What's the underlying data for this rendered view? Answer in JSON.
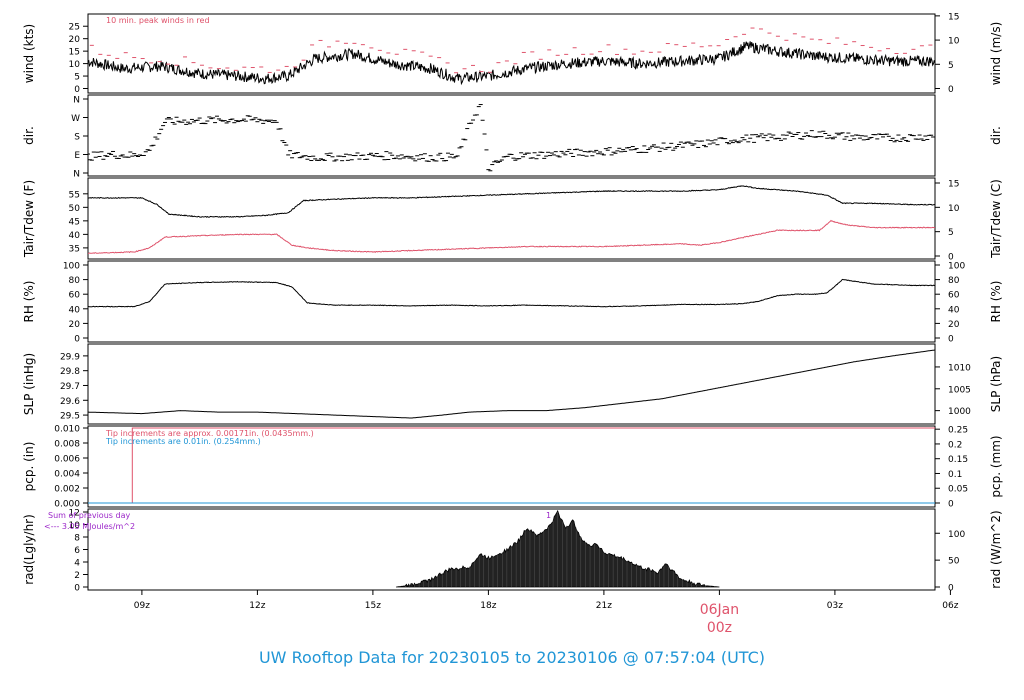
{
  "footer": {
    "title": "UW Rooftop Data for 20230105  to  20230106 @ 07:57:04  (UTC)"
  },
  "colors": {
    "red": "#df536b",
    "blue": "#2196d6",
    "purple": "#9c27c9",
    "black": "#000000"
  },
  "chart_data": [
    {
      "type": "line",
      "panel": "wind",
      "ylabel": "wind (kts)",
      "ylabel_right": "wind (m/s)",
      "annotation": "10 min. peak winds in red",
      "y_ticks": [
        0,
        5,
        10,
        15,
        20,
        25
      ],
      "y_ticks_right": [
        0,
        5,
        10,
        15
      ],
      "ylim": [
        -1,
        27.5
      ],
      "series": [
        {
          "color": "#000000",
          "x": [
            7.6,
            8.5,
            9.5,
            10.5,
            11.5,
            12.2,
            12.8,
            13.5,
            14.5,
            15.5,
            16.5,
            17.2,
            18.0,
            19.0,
            20.0,
            21.0,
            22.0,
            23.0,
            24.0,
            24.7,
            25.5,
            26.5,
            27.5,
            28.5,
            29.6
          ],
          "values": [
            11,
            8,
            9,
            6,
            5,
            4,
            5,
            12,
            14,
            10,
            8,
            4,
            5,
            8,
            10,
            11,
            10,
            11,
            12,
            17,
            15,
            13,
            12,
            11,
            11
          ]
        },
        {
          "color": "#df536b",
          "x": [
            7.6,
            8.5,
            9.5,
            10.5,
            11.5,
            12.2,
            12.8,
            13.5,
            14.5,
            15.5,
            16.5,
            17.2,
            18.0,
            19.0,
            20.0,
            21.0,
            22.0,
            23.0,
            24.0,
            24.7,
            25.5,
            26.5,
            27.5,
            28.5,
            29.6
          ],
          "values": [
            16,
            13,
            12,
            10,
            8,
            8,
            8,
            17,
            20,
            15,
            12,
            8,
            8,
            13,
            15,
            16,
            15,
            17,
            18,
            24,
            22,
            19,
            18,
            16,
            16
          ]
        }
      ]
    },
    {
      "type": "scatter",
      "panel": "dir",
      "ylabel": "dir.",
      "ylabel_right": "dir.",
      "y_ticks": [
        "N",
        "W",
        "S",
        "E",
        "N"
      ],
      "y_tick_values": [
        360,
        270,
        180,
        90,
        0
      ],
      "ylim": [
        0,
        360
      ],
      "series": [
        {
          "color": "#000000",
          "x": [
            7.6,
            8.2,
            8.8,
            9.2,
            9.6,
            10.5,
            11.5,
            12.5,
            12.8,
            13.5,
            14.5,
            15.5,
            16.5,
            17.2,
            17.6,
            17.8,
            18.0,
            18.5,
            19.5,
            20.5,
            21.5,
            22.5,
            23.5,
            24.5,
            25.5,
            26.5,
            27.5,
            28.5,
            29.6
          ],
          "values": [
            80,
            90,
            85,
            110,
            250,
            255,
            260,
            255,
            90,
            75,
            80,
            85,
            75,
            80,
            270,
            330,
            20,
            80,
            90,
            100,
            110,
            125,
            140,
            165,
            175,
            190,
            175,
            170,
            180
          ]
        }
      ]
    },
    {
      "type": "line",
      "panel": "temperature",
      "ylabel": "Tair/Tdew (F)",
      "ylabel_right": "Tair/Tdew (C)",
      "y_ticks": [
        35,
        40,
        45,
        50,
        55
      ],
      "y_ticks_right": [
        0,
        5,
        10,
        15
      ],
      "ylim": [
        32,
        59
      ],
      "series": [
        {
          "color": "#000000",
          "x": [
            7.6,
            9.0,
            9.4,
            9.7,
            10.5,
            11.5,
            12.2,
            12.8,
            13.2,
            14.0,
            15.0,
            16.0,
            17.0,
            18.0,
            19.0,
            20.0,
            21.0,
            22.0,
            23.0,
            24.0,
            24.6,
            25.0,
            26.0,
            26.8,
            27.2,
            28.0,
            29.0,
            29.6
          ],
          "values": [
            53.5,
            53.5,
            51,
            47.5,
            46.5,
            46.5,
            47,
            48,
            52.5,
            53,
            53.5,
            53.5,
            54,
            54.5,
            55,
            55.5,
            56,
            56,
            56,
            56.5,
            58,
            57,
            56,
            54.5,
            51.5,
            51.5,
            51,
            51
          ]
        },
        {
          "color": "#df536b",
          "x": [
            7.6,
            8.8,
            9.2,
            9.6,
            10.5,
            11.5,
            12.5,
            12.9,
            13.3,
            14.0,
            15.0,
            16.0,
            17.0,
            18.0,
            19.0,
            20.0,
            21.0,
            22.0,
            23.0,
            23.5,
            24.0,
            25.0,
            25.5,
            26.0,
            26.6,
            26.9,
            27.3,
            28.0,
            29.0,
            29.6
          ],
          "values": [
            33,
            33.5,
            35,
            39,
            39.5,
            40,
            40,
            36,
            35,
            34,
            33.5,
            34,
            34.5,
            35,
            35.5,
            35.5,
            35.5,
            36,
            36.5,
            36,
            37,
            40,
            41.5,
            41.5,
            41.5,
            45,
            43.5,
            42.5,
            42.5,
            42.5
          ]
        }
      ]
    },
    {
      "type": "line",
      "panel": "rh",
      "ylabel": "RH (%)",
      "ylabel_right": "RH (%)",
      "y_ticks": [
        0,
        20,
        40,
        60,
        80,
        100
      ],
      "y_ticks_right": [
        0,
        20,
        40,
        60,
        80,
        100
      ],
      "ylim": [
        0,
        100
      ],
      "series": [
        {
          "color": "#000000",
          "x": [
            7.6,
            8.8,
            9.2,
            9.6,
            10.5,
            11.5,
            12.5,
            12.9,
            13.3,
            14.0,
            15.0,
            16.0,
            17.0,
            18.0,
            19.0,
            20.0,
            21.0,
            22.0,
            23.0,
            24.0,
            24.6,
            25.0,
            25.5,
            26.0,
            26.5,
            26.8,
            27.2,
            28.0,
            29.0,
            29.6
          ],
          "values": [
            43,
            43,
            50,
            74,
            76,
            77,
            76,
            70,
            48,
            45,
            45,
            44,
            45,
            44,
            45,
            44,
            43,
            44,
            46,
            46,
            47,
            50,
            58,
            60,
            60,
            62,
            80,
            74,
            72,
            72
          ]
        }
      ]
    },
    {
      "type": "line",
      "panel": "slp",
      "ylabel": "SLP (inHg)",
      "ylabel_right": "SLP (hPa)",
      "y_ticks": [
        29.5,
        29.6,
        29.7,
        29.8,
        29.9
      ],
      "y_ticks_right": [
        1000,
        1005,
        1010
      ],
      "ylim": [
        29.46,
        29.96
      ],
      "series": [
        {
          "color": "#000000",
          "x": [
            7.6,
            9.0,
            10.0,
            11.0,
            12.0,
            13.0,
            14.0,
            15.0,
            16.0,
            16.8,
            17.5,
            18.5,
            19.5,
            20.5,
            21.5,
            22.5,
            23.5,
            24.5,
            25.5,
            26.5,
            27.5,
            28.5,
            29.6
          ],
          "values": [
            29.52,
            29.51,
            29.53,
            29.52,
            29.52,
            29.51,
            29.5,
            29.49,
            29.48,
            29.5,
            29.52,
            29.53,
            29.53,
            29.55,
            29.58,
            29.61,
            29.66,
            29.71,
            29.76,
            29.81,
            29.86,
            29.9,
            29.94
          ]
        }
      ]
    },
    {
      "type": "line",
      "panel": "precip",
      "ylabel": "pcp. (in)",
      "ylabel_right": "pcp. (mm)",
      "annotations": [
        "Tip increments are approx. 0.00171in. (0.0435mm.)",
        "Tip increments are 0.01in. (0.254mm.)"
      ],
      "y_ticks": [
        "0.000",
        "0.002",
        "0.004",
        "0.006",
        "0.008",
        "0.010"
      ],
      "y_ticks_right": [
        "0",
        "0.05",
        "0.1",
        "0.15",
        "0.2",
        "0.25"
      ],
      "ylim": [
        0,
        0.01
      ],
      "series": [
        {
          "color": "#df536b",
          "x": [
            7.6,
            8.75,
            8.75,
            29.6
          ],
          "values": [
            0,
            0,
            0.01,
            0.01
          ]
        },
        {
          "color": "#2196d6",
          "x": [
            7.6,
            29.6
          ],
          "values": [
            0,
            0
          ]
        }
      ]
    },
    {
      "type": "area",
      "panel": "radiation",
      "ylabel": "rad(Lgly/hr)",
      "ylabel_right": "rad (W/m^2)",
      "y_ticks": [
        0,
        2,
        4,
        6,
        8,
        10,
        12
      ],
      "y_ticks_right": [
        0,
        50,
        100
      ],
      "ylim": [
        0,
        12
      ],
      "annotations": [
        "Sum of previous day",
        "<--- 3.05 MJoules/m^2",
        "1"
      ],
      "series": [
        {
          "color": "#000000",
          "x": [
            15.6,
            16.0,
            16.5,
            17.0,
            17.5,
            17.8,
            18.0,
            18.5,
            18.8,
            19.0,
            19.3,
            19.6,
            19.8,
            20.0,
            20.2,
            20.4,
            20.6,
            20.8,
            21.0,
            21.5,
            22.0,
            22.2,
            22.4,
            22.6,
            22.8,
            23.0,
            23.5,
            24.0
          ],
          "values": [
            0,
            0.3,
            1.2,
            2.8,
            3.2,
            5.2,
            4.6,
            6.0,
            7.5,
            9.5,
            8.2,
            9.8,
            12.0,
            9.5,
            10.5,
            8.0,
            6.5,
            7.0,
            5.5,
            4.5,
            3.0,
            2.8,
            2.2,
            3.8,
            2.5,
            1.2,
            0.3,
            0
          ]
        }
      ]
    }
  ],
  "x_axis": {
    "tick_labels": [
      "09z",
      "12z",
      "15z",
      "18z",
      "21z",
      "00z",
      "03z",
      "06z"
    ],
    "tick_hours": [
      9,
      12,
      15,
      18,
      21,
      24,
      27,
      30
    ],
    "xlim": [
      7.6,
      29.6
    ],
    "date_label": "06Jan",
    "date_hour_label": "00z"
  }
}
